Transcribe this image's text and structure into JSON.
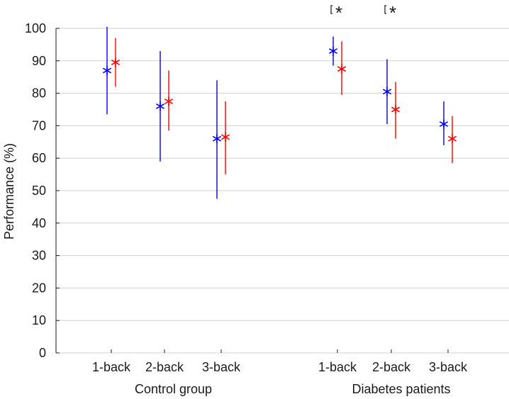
{
  "chart_data": {
    "type": "scatter",
    "ylabel": "Performance (%)",
    "ylim": [
      0,
      100
    ],
    "yticks": [
      0,
      10,
      20,
      30,
      40,
      50,
      60,
      70,
      80,
      90,
      100
    ],
    "grid": "horizontal",
    "groups": [
      {
        "label": "Control group",
        "conditions": [
          "1-back",
          "2-back",
          "3-back"
        ],
        "significant": [
          false,
          false,
          false
        ]
      },
      {
        "label": "Diabetes patients",
        "conditions": [
          "1-back",
          "2-back",
          "3-back"
        ],
        "significant": [
          true,
          true,
          false
        ]
      }
    ],
    "categories": [
      "1-back",
      "2-back",
      "3-back",
      "1-back",
      "2-back",
      "3-back"
    ],
    "series": [
      {
        "color": "#0000ff",
        "marker": "asterisk",
        "values": [
          87,
          76,
          66,
          93,
          80.5,
          70.5
        ],
        "err_low": [
          73.5,
          59,
          47.5,
          88.5,
          70.5,
          64
        ],
        "err_high": [
          100.5,
          93,
          84,
          97.5,
          90.5,
          77.5
        ]
      },
      {
        "color": "#ff0000",
        "marker": "asterisk",
        "values": [
          89.5,
          77.5,
          66.5,
          87.5,
          75,
          66
        ],
        "err_low": [
          82,
          68.5,
          55,
          79.5,
          66,
          58.5
        ],
        "err_high": [
          97,
          87,
          77.5,
          96,
          83.5,
          73
        ]
      }
    ],
    "significance_marker": "*"
  }
}
